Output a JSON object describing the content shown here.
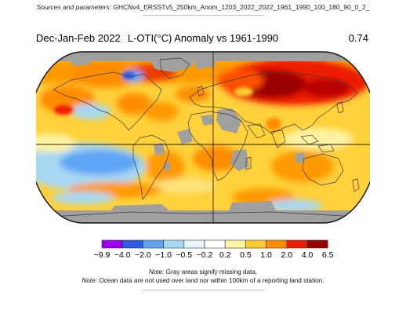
{
  "source": {
    "label": "Sources and parameters:",
    "text": "GHCNv4_ERSSTv5_250km_Anom_1203_2022_2022_1961_1990_100_180_90_0_2_"
  },
  "header": {
    "season": "Dec-Jan-Feb 2022",
    "title": "L-OTI(°C) Anomaly vs 1961-1990",
    "global_mean": "0.74"
  },
  "legend": {
    "tick_labels": [
      "−9.9",
      "−4.0",
      "−2.0",
      "−1.0",
      "−0.5",
      "−0.2",
      "0.2",
      "0.5",
      "1.0",
      "2.0",
      "4.0",
      "6.5"
    ],
    "colors": [
      "#9a00ee",
      "#2d5ae6",
      "#5fa5f5",
      "#a6d8f2",
      "#e8f7fb",
      "#ffffff",
      "#fff2a0",
      "#ffc930",
      "#ff8c00",
      "#ee1d00",
      "#9a0000"
    ],
    "missing_color": "#a0a0a0"
  },
  "notes": {
    "line1_label": "Note:",
    "line1_text": "Gray areas signify missing data.",
    "line2_label": "Note:",
    "line2_text": "Ocean data are not used over land nor within 100km of a reporting land station."
  }
}
